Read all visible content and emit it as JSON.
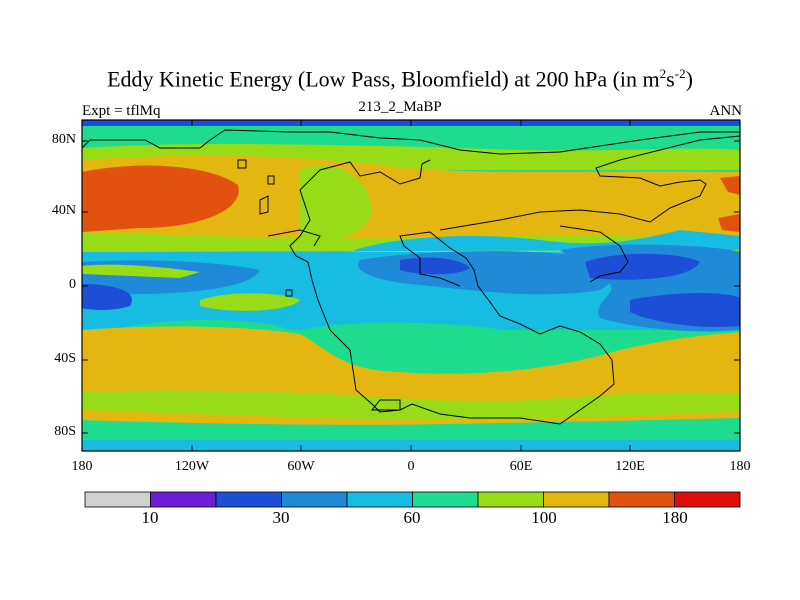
{
  "title": "Eddy Kinetic Energy (Low Pass, Bloomfield) at 200 hPa (in m",
  "title_sup1": "2",
  "title_mid": "s",
  "title_sup2": "-2",
  "title_end": ")",
  "subtitle": "213_2_MaBP",
  "left_label": "Expt = tflMq",
  "right_label": "ANN",
  "y_ticks": [
    "80N",
    "40N",
    "0",
    "40S",
    "80S"
  ],
  "x_ticks": [
    "180",
    "120W",
    "60W",
    "0",
    "60E",
    "120E",
    "180"
  ],
  "colorbar": {
    "colors": [
      "#d0d0d0",
      "#6a1ed8",
      "#1c4fd6",
      "#1f8ad8",
      "#17bde0",
      "#1ddc8e",
      "#98dc17",
      "#e3b70f",
      "#e2520f",
      "#e00d0d"
    ],
    "labels": [
      "10",
      "30",
      "60",
      "100",
      "180"
    ]
  }
}
